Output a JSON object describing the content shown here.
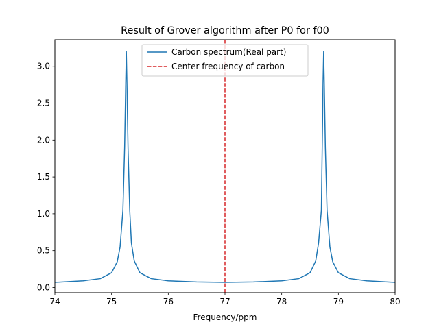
{
  "chart_data": {
    "type": "line",
    "title": "Result of Grover algorithm after P0 for f00",
    "xlabel": "Frequency/ppm",
    "ylabel": "",
    "xlim": [
      74,
      80
    ],
    "ylim": [
      -0.07,
      3.36
    ],
    "xticks": [
      74,
      75,
      76,
      77,
      78,
      79,
      80
    ],
    "xtick_labels": [
      "74",
      "75",
      "76",
      "77",
      "78",
      "79",
      "80"
    ],
    "yticks": [
      0.0,
      0.5,
      1.0,
      1.5,
      2.0,
      2.5,
      3.0
    ],
    "ytick_labels": [
      "0.0",
      "0.5",
      "1.0",
      "1.5",
      "2.0",
      "2.5",
      "3.0"
    ],
    "grid": false,
    "legend_position": "top-center",
    "series": [
      {
        "name": "Carbon spectrum(Real part)",
        "color": "#1f77b4",
        "style": "solid",
        "x": [
          74.0,
          74.5,
          74.8,
          75.0,
          75.1,
          75.15,
          75.2,
          75.23,
          75.25,
          75.26,
          75.27,
          75.29,
          75.32,
          75.35,
          75.4,
          75.5,
          75.7,
          76.0,
          76.5,
          77.0,
          77.5,
          78.0,
          78.3,
          78.5,
          78.6,
          78.65,
          78.7,
          78.73,
          78.74,
          78.75,
          78.77,
          78.8,
          78.85,
          78.9,
          79.0,
          79.2,
          79.5,
          80.0
        ],
        "y": [
          0.07,
          0.09,
          0.12,
          0.2,
          0.35,
          0.55,
          1.05,
          1.9,
          2.8,
          3.2,
          2.8,
          1.9,
          1.05,
          0.6,
          0.36,
          0.2,
          0.12,
          0.09,
          0.075,
          0.07,
          0.075,
          0.09,
          0.12,
          0.2,
          0.36,
          0.6,
          1.05,
          2.8,
          3.2,
          2.8,
          1.9,
          1.05,
          0.55,
          0.35,
          0.2,
          0.12,
          0.09,
          0.07
        ]
      },
      {
        "name": "Center frequency of carbon",
        "color": "#d62728",
        "style": "dashed",
        "vertical_x": 77.0
      }
    ]
  }
}
